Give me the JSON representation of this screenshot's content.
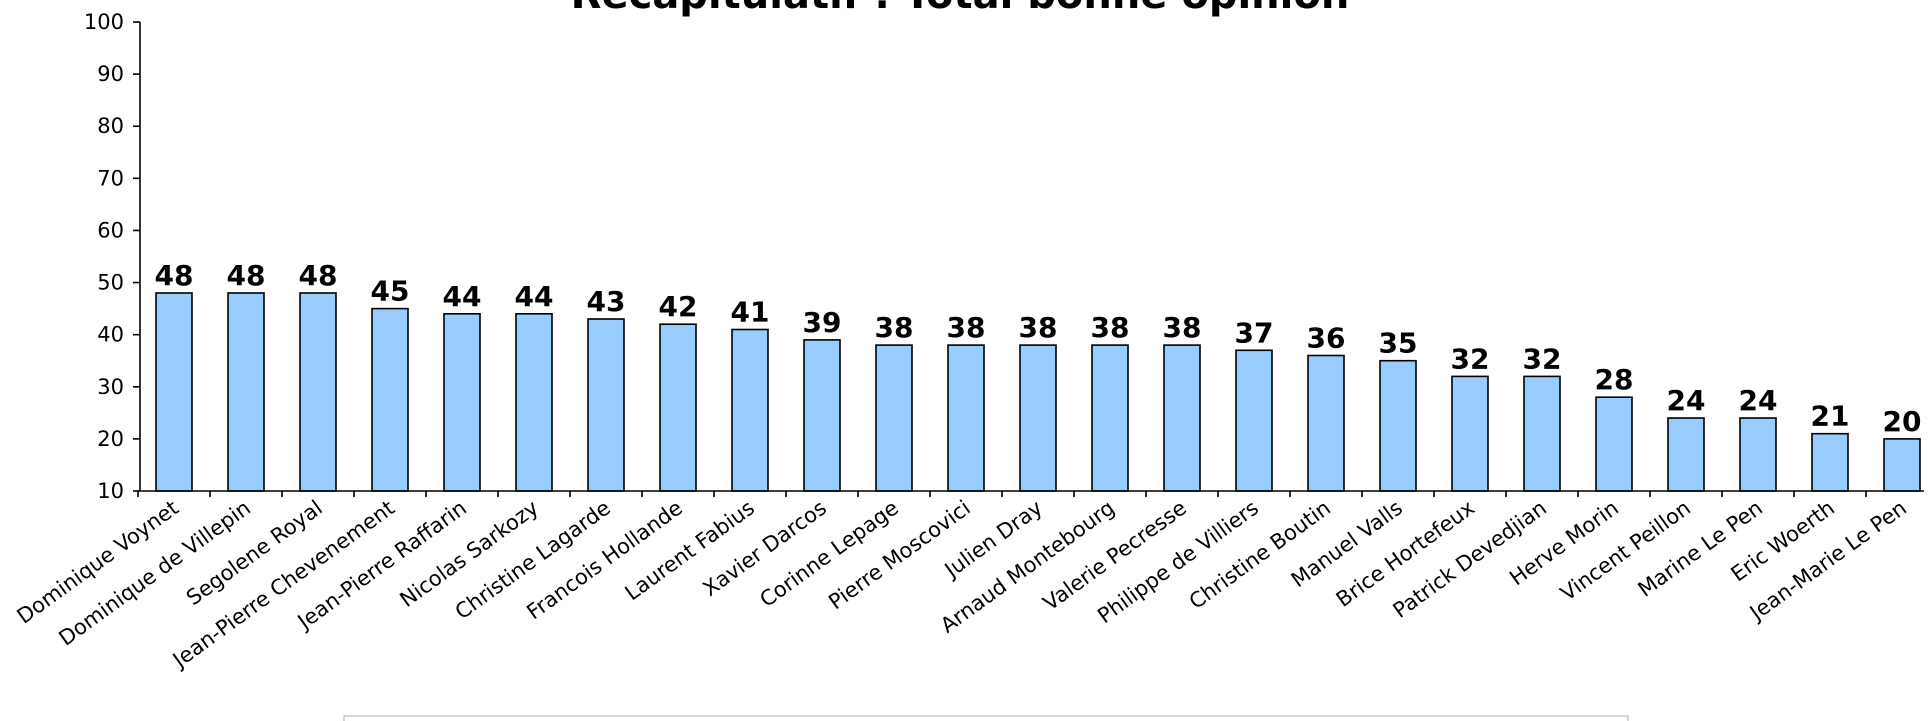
{
  "colors": {
    "bar_fill": "#99ccff",
    "bar_stroke": "#000000",
    "axis": "#000000",
    "background": "#ffffff"
  },
  "chart_data": {
    "type": "bar",
    "title": "Récapitulatif : Total bonne opinion",
    "xlabel": "",
    "ylabel": "",
    "ylim": [
      10,
      100
    ],
    "yticks": [
      10,
      20,
      30,
      40,
      50,
      60,
      70,
      80,
      90,
      100
    ],
    "grid": false,
    "data_labels": true,
    "categories": [
      "Dominique Voynet",
      "Dominique de Villepin",
      "Segolene Royal",
      "Jean-Pierre Chevenement",
      "Jean-Pierre Raffarin",
      "Nicolas Sarkozy",
      "Christine Lagarde",
      "Francois Hollande",
      "Laurent Fabius",
      "Xavier Darcos",
      "Corinne Lepage",
      "Pierre Moscovici",
      "Julien Dray",
      "Arnaud Montebourg",
      "Valerie Pecresse",
      "Philippe de Villiers",
      "Christine Boutin",
      "Manuel Valls",
      "Brice Hortefeux",
      "Patrick Devedjian",
      "Herve Morin",
      "Vincent Peillon",
      "Marine Le Pen",
      "Eric Woerth",
      "Jean-Marie Le Pen"
    ],
    "values": [
      48,
      48,
      48,
      45,
      44,
      44,
      43,
      42,
      41,
      39,
      38,
      38,
      38,
      38,
      38,
      37,
      36,
      35,
      32,
      32,
      28,
      24,
      24,
      21,
      20
    ]
  }
}
